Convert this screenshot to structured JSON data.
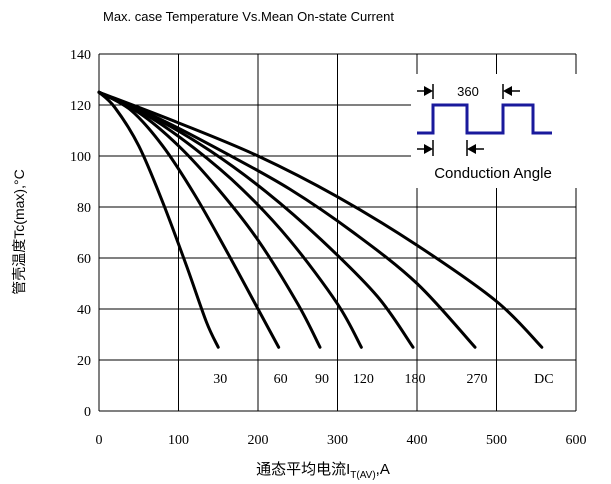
{
  "chart_data": {
    "type": "line",
    "title": "Max. case Temperature Vs.Mean On-state Current",
    "ylabel": "管壳温度Tc(max),°C",
    "xlabel_main": "通态平均电流I",
    "xlabel_sub": "T(AV)",
    "xlabel_tail": ",A",
    "xlim": [
      0,
      600
    ],
    "ylim": [
      0,
      140
    ],
    "x_ticks": [
      "0",
      "100",
      "200",
      "300",
      "400",
      "500",
      "600"
    ],
    "y_ticks": [
      "0",
      "20",
      "40",
      "60",
      "80",
      "100",
      "120",
      "140"
    ],
    "grid": true,
    "series": [
      {
        "name": "30",
        "x": [
          0,
          20,
          50,
          80,
          110,
          135,
          150
        ],
        "y": [
          125,
          119,
          104,
          82,
          57,
          35,
          25
        ]
      },
      {
        "name": "60",
        "x": [
          0,
          40,
          80,
          120,
          160,
          200,
          226
        ],
        "y": [
          125,
          118,
          104,
          85,
          63,
          40,
          25
        ]
      },
      {
        "name": "90",
        "x": [
          0,
          50,
          100,
          150,
          200,
          250,
          278
        ],
        "y": [
          125,
          117,
          104,
          87,
          67,
          42,
          25
        ]
      },
      {
        "name": "120",
        "x": [
          0,
          60,
          120,
          180,
          240,
          300,
          330
        ],
        "y": [
          125,
          116,
          103,
          87,
          67,
          42,
          25
        ]
      },
      {
        "name": "180",
        "x": [
          0,
          70,
          140,
          210,
          280,
          350,
          395
        ],
        "y": [
          125,
          115,
          102,
          86,
          67,
          45,
          25
        ]
      },
      {
        "name": "270",
        "x": [
          0,
          80,
          160,
          240,
          320,
          400,
          473
        ],
        "y": [
          125,
          114,
          101,
          87,
          70,
          50,
          25
        ]
      },
      {
        "name": "DC",
        "x": [
          0,
          100,
          200,
          300,
          400,
          500,
          557
        ],
        "y": [
          125,
          113,
          100,
          84,
          65,
          43,
          25
        ]
      }
    ]
  },
  "inset": {
    "period_label": "360",
    "angle_label": "Conduction Angle"
  },
  "colors": {
    "curve": "#000000",
    "grid": "#000000",
    "waveform": "#1a1a9c"
  }
}
